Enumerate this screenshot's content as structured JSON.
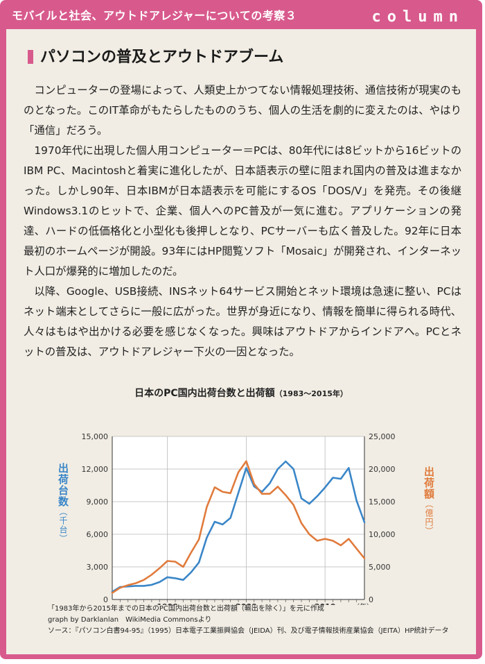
{
  "header": {
    "title": "モバイルと社会、アウトドアレジャーについての考察３",
    "column_label": "column"
  },
  "article": {
    "heading": "パソコンの普及とアウトドアブーム",
    "paragraphs": [
      "コンピューターの登場によって、人類史上かつてない情報処理技術、通信技術が現実のものとなった。このIT革命がもたらしたもののうち、個人の生活を劇的に変えたのは、やはり「通信」だろう。",
      "1970年代に出現した個人用コンピューター＝PCは、80年代には8ビットから16ビットのIBM PC、Macintoshと着実に進化したが、日本語表示の壁に阻まれ国内の普及は進まなかった。しかし90年、日本IBMが日本語表示を可能にするOS「DOS/V」を発売。その後継Windows3.1のヒットで、企業、個人へのPC普及が一気に進む。アプリケーションの発達、ハードの低価格化と小型化も後押しとなり、PCサーバーも広く普及した。92年に日本最初のホームページが開設。93年にはHP閲覧ソフト「Mosaic」が開発され、インターネット人口が爆発的に増加したのだ。",
      "以降、Google、USB接続、INSネット64サービス開始とネット環境は急速に整い、PCはネット端末としてさらに一般に広がった。世界が身近になり、情報を簡単に得られる時代、人々はもはや出かける必要を感じなくなった。興味はアウトドアからインドアへ。PCとネットの普及は、アウトドアレジャー下火の一因となった。"
    ]
  },
  "chart_data": {
    "type": "line",
    "title": "日本のPC国内出荷台数と出荷額",
    "subtitle": "（1983～2015年）",
    "x_unit_label": "（年）",
    "x_ticks": [
      1990,
      2000,
      2010
    ],
    "xlim": [
      1983,
      2015
    ],
    "y_left": {
      "label": "出荷台数",
      "unit": "（千台）",
      "ticks": [
        "0",
        "3,000",
        "6,000",
        "9,000",
        "12,000",
        "15,000"
      ],
      "ylim": [
        0,
        15000
      ],
      "color": "#3a86c8"
    },
    "y_right": {
      "label": "出荷額",
      "unit": "（億円）",
      "ticks": [
        "0",
        "5,000",
        "10,000",
        "15,000",
        "20,000",
        "25,000"
      ],
      "ylim": [
        0,
        25000
      ],
      "color": "#e07b3c"
    },
    "grid": true,
    "x": [
      1983,
      1984,
      1985,
      1986,
      1987,
      1988,
      1989,
      1990,
      1991,
      1992,
      1993,
      1994,
      1995,
      1996,
      1997,
      1998,
      1999,
      2000,
      2001,
      2002,
      2003,
      2004,
      2005,
      2006,
      2007,
      2008,
      2009,
      2010,
      2011,
      2012,
      2013,
      2014,
      2015
    ],
    "series": [
      {
        "name": "出荷台数",
        "axis": "left",
        "color": "#3a86c8",
        "values": [
          700,
          1150,
          1200,
          1250,
          1250,
          1350,
          1600,
          2050,
          1950,
          1800,
          2500,
          3400,
          5700,
          7150,
          6900,
          7500,
          9800,
          12100,
          10400,
          9900,
          10700,
          12000,
          12700,
          12000,
          9300,
          8800,
          9500,
          10300,
          11200,
          11100,
          12100,
          9100,
          7100
        ]
      },
      {
        "name": "出荷額",
        "axis": "right",
        "color": "#e07b3c",
        "values": [
          1000,
          1800,
          2200,
          2500,
          3000,
          3800,
          4800,
          5900,
          5800,
          5000,
          7200,
          9200,
          14200,
          17200,
          16500,
          16300,
          19500,
          21200,
          17700,
          16200,
          16200,
          17300,
          16000,
          14500,
          11700,
          10000,
          9000,
          9300,
          9000,
          8300,
          9300,
          7800,
          6300
        ]
      }
    ]
  },
  "notes": {
    "line1": "「1983年から2015年までの日本のPC国内出荷台数と出荷額（輸出を除く）」を元に作成",
    "line2": "graph by Darklanlan　WikiMedia Commonsより",
    "line3": "ソース：『パソコン白書94-95』（1995）日本電子工業振興協会（JEIDA）刊、及び電子情報技術産業協会（JEITA）HP統計データ"
  }
}
